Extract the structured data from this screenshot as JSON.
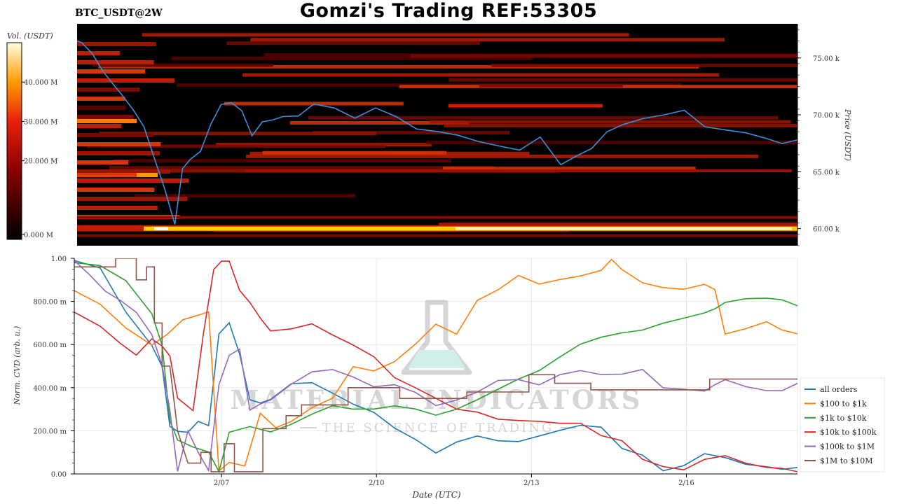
{
  "header": {
    "title": "Gomzi's Trading REF:53305",
    "pair": "BTC_USDT@2W"
  },
  "watermark": {
    "line1": "MATERIAL INDICATORS",
    "line2": "THE SCIENCE OF TRADING"
  },
  "colors": {
    "all_orders": "#1f77b4",
    "s100_1k": "#ff7f0e",
    "s1k_10k": "#2ca02c",
    "s10k_100k": "#d62728",
    "s100k_1m": "#9467bd",
    "s1m_10m": "#8c564b",
    "price_line": "#3a8fd9",
    "heatmap_bg": "#000000"
  },
  "chart_data": [
    {
      "type": "heatmap",
      "name": "orderbook-heatmap",
      "colorbar_label": "Vol. (USDT)",
      "colorbar_ticks": [
        "0.000 M",
        "20.000 M",
        "30.000 M",
        "40.000 M"
      ],
      "colorbar_range": [
        0,
        50
      ],
      "ylabel": "Price (USDT)",
      "y_ticks": [
        "60.00 k",
        "65.00 k",
        "70.00 k",
        "75.00 k"
      ],
      "ylim": [
        58500,
        78000
      ],
      "xlim": [
        0,
        14
      ],
      "price_series": {
        "x": [
          0,
          0.1,
          0.3,
          0.5,
          0.7,
          0.9,
          1.1,
          1.3,
          1.5,
          1.7,
          1.9,
          2.05,
          2.2,
          2.4,
          2.6,
          2.8,
          3.0,
          3.2,
          3.4,
          3.6,
          3.8,
          4.0,
          4.3,
          4.6,
          5.0,
          5.4,
          5.8,
          6.2,
          6.6,
          7.0,
          7.4,
          7.8,
          8.2,
          8.6,
          9.0,
          9.4,
          9.7,
          10.0,
          10.3,
          10.6,
          11.0,
          11.4,
          11.8,
          12.2,
          12.6,
          13.0,
          13.4,
          13.7,
          14.0
        ],
        "y": [
          76500,
          76300,
          75200,
          73800,
          72600,
          71600,
          70500,
          68800,
          66200,
          63500,
          60400,
          65200,
          66000,
          66800,
          69200,
          70800,
          71000,
          70500,
          68200,
          69400,
          69400,
          69800,
          70000,
          70900,
          70700,
          69800,
          70600,
          69900,
          68900,
          68400,
          68200,
          67800,
          67300,
          67000,
          68000,
          65700,
          66300,
          67100,
          68400,
          69100,
          69700,
          69900,
          70500,
          69000,
          68700,
          68300,
          67900,
          67600,
          67800
        ]
      }
    },
    {
      "type": "line",
      "name": "normalized-cvd",
      "xlabel": "Date (UTC)",
      "ylabel": "Norm. CVD (arb. u.)",
      "categories": [
        "2/07",
        "2/10",
        "2/13",
        "2/16"
      ],
      "category_x": [
        2.85,
        5.85,
        8.85,
        11.85
      ],
      "y_ticks": [
        "0.00",
        "200.00 m",
        "400.00 m",
        "600.00 m",
        "800.00 m",
        "1.00"
      ],
      "y_tick_values": [
        0,
        0.2,
        0.4,
        0.6,
        0.8,
        1.0
      ],
      "xlim": [
        0,
        14
      ],
      "ylim": [
        0,
        1
      ],
      "legend_position": "right",
      "series": [
        {
          "name": "all orders",
          "color_key": "all_orders",
          "x": [
            0,
            0.5,
            1.0,
            1.5,
            1.7,
            1.85,
            2.0,
            2.2,
            2.4,
            2.6,
            2.8,
            3.0,
            3.2,
            3.4,
            3.6,
            3.8,
            4.2,
            4.6,
            5.0,
            5.4,
            5.8,
            6.2,
            6.6,
            7.0,
            7.4,
            7.8,
            8.2,
            8.6,
            9.0,
            9.4,
            9.8,
            10.2,
            10.6,
            11.0,
            11.4,
            11.8,
            12.2,
            12.6,
            13.0,
            13.4,
            13.7,
            14.0
          ],
          "y": [
            0.99,
            0.96,
            0.75,
            0.6,
            0.5,
            0.22,
            0.2,
            0.2,
            0.25,
            0.22,
            0.65,
            0.7,
            0.55,
            0.35,
            0.33,
            0.35,
            0.42,
            0.43,
            0.38,
            0.32,
            0.28,
            0.22,
            0.16,
            0.1,
            0.15,
            0.18,
            0.15,
            0.15,
            0.18,
            0.2,
            0.22,
            0.21,
            0.12,
            0.08,
            0.01,
            0.04,
            0.1,
            0.08,
            0.05,
            0.03,
            0.02,
            0.03
          ]
        },
        {
          "name": "$100 to $1k",
          "color_key": "s100_1k",
          "x": [
            0,
            0.5,
            1.0,
            1.5,
            1.8,
            2.1,
            2.4,
            2.6,
            2.8,
            3.0,
            3.3,
            3.6,
            3.9,
            4.2,
            4.6,
            5.0,
            5.4,
            5.8,
            6.2,
            6.6,
            7.0,
            7.4,
            7.8,
            8.2,
            8.6,
            9.0,
            9.4,
            9.8,
            10.2,
            10.4,
            10.6,
            11.0,
            11.4,
            11.8,
            12.2,
            12.4,
            12.6,
            13.0,
            13.4,
            13.7,
            14.0
          ],
          "y": [
            0.85,
            0.78,
            0.68,
            0.6,
            0.65,
            0.72,
            0.73,
            0.75,
            0.01,
            0.05,
            0.04,
            0.28,
            0.22,
            0.24,
            0.3,
            0.35,
            0.5,
            0.48,
            0.52,
            0.6,
            0.7,
            0.65,
            0.8,
            0.85,
            0.92,
            0.88,
            0.9,
            0.92,
            0.95,
            1.0,
            0.95,
            0.88,
            0.86,
            0.85,
            0.88,
            0.85,
            0.65,
            0.68,
            0.7,
            0.67,
            0.65
          ]
        },
        {
          "name": "$1k to $10k",
          "color_key": "s1k_10k",
          "x": [
            0,
            0.5,
            1.0,
            1.5,
            1.7,
            1.85,
            2.0,
            2.3,
            2.6,
            2.8,
            3.0,
            3.4,
            3.8,
            4.2,
            4.6,
            5.0,
            5.4,
            5.8,
            6.2,
            6.6,
            7.0,
            7.4,
            7.8,
            8.2,
            8.6,
            9.0,
            9.4,
            9.8,
            10.2,
            10.6,
            11.0,
            11.4,
            11.8,
            12.2,
            12.4,
            12.6,
            13.0,
            13.4,
            13.7,
            14.0
          ],
          "y": [
            0.98,
            0.97,
            0.9,
            0.75,
            0.6,
            0.25,
            0.15,
            0.12,
            0.1,
            0.01,
            0.2,
            0.22,
            0.2,
            0.23,
            0.28,
            0.32,
            0.3,
            0.3,
            0.32,
            0.3,
            0.27,
            0.3,
            0.35,
            0.4,
            0.44,
            0.48,
            0.55,
            0.6,
            0.64,
            0.66,
            0.67,
            0.7,
            0.72,
            0.74,
            0.76,
            0.8,
            0.82,
            0.81,
            0.8,
            0.78
          ]
        },
        {
          "name": "$10k to $100k",
          "color_key": "s10k_100k",
          "x": [
            0,
            0.5,
            0.9,
            1.2,
            1.5,
            1.7,
            1.85,
            2.0,
            2.3,
            2.5,
            2.7,
            2.85,
            3.0,
            3.2,
            3.4,
            3.6,
            3.8,
            4.2,
            4.6,
            5.0,
            5.4,
            5.8,
            6.2,
            6.6,
            7.0,
            7.4,
            7.8,
            8.2,
            8.6,
            9.0,
            9.4,
            9.8,
            10.2,
            10.6,
            11.0,
            11.4,
            11.8,
            12.2,
            12.6,
            13.0,
            13.4,
            13.7,
            14.0
          ],
          "y": [
            0.75,
            0.68,
            0.6,
            0.55,
            0.62,
            0.6,
            0.55,
            0.35,
            0.3,
            0.65,
            0.95,
            0.99,
            0.98,
            0.85,
            0.8,
            0.72,
            0.66,
            0.68,
            0.7,
            0.65,
            0.6,
            0.55,
            0.45,
            0.4,
            0.35,
            0.3,
            0.28,
            0.26,
            0.25,
            0.25,
            0.24,
            0.24,
            0.18,
            0.16,
            0.07,
            0.04,
            0.02,
            0.07,
            0.08,
            0.05,
            0.03,
            0.02,
            0.01
          ]
        },
        {
          "name": "$100k to $1M",
          "color_key": "s100k_1m",
          "x": [
            0,
            0.3,
            0.6,
            0.9,
            1.2,
            1.5,
            1.7,
            1.85,
            2.0,
            2.2,
            2.4,
            2.6,
            2.8,
            3.0,
            3.2,
            3.4,
            3.6,
            3.8,
            4.2,
            4.6,
            5.0,
            5.4,
            5.8,
            6.2,
            6.6,
            7.0,
            7.4,
            7.8,
            8.2,
            8.6,
            9.0,
            9.4,
            9.8,
            10.2,
            10.6,
            11.0,
            11.4,
            11.8,
            12.2,
            12.4,
            12.6,
            13.0,
            13.4,
            13.7,
            14.0
          ],
          "y": [
            0.99,
            0.92,
            0.85,
            0.8,
            0.75,
            0.65,
            0.5,
            0.3,
            0.01,
            0.2,
            0.1,
            0.01,
            0.42,
            0.55,
            0.58,
            0.3,
            0.32,
            0.34,
            0.42,
            0.47,
            0.49,
            0.45,
            0.4,
            0.42,
            0.38,
            0.32,
            0.35,
            0.38,
            0.43,
            0.44,
            0.42,
            0.46,
            0.48,
            0.46,
            0.47,
            0.48,
            0.4,
            0.39,
            0.38,
            0.42,
            0.43,
            0.4,
            0.38,
            0.39,
            0.42
          ]
        },
        {
          "name": "$1M to $10M",
          "color_key": "s1m_10m",
          "x": [
            0,
            0.5,
            0.8,
            0.8,
            1.2,
            1.2,
            1.4,
            1.4,
            1.55,
            1.55,
            1.7,
            1.7,
            1.85,
            2.0,
            2.2,
            2.45,
            2.45,
            2.65,
            2.65,
            2.9,
            2.9,
            3.1,
            3.1,
            3.65,
            3.65,
            4.1,
            4.1,
            4.4,
            4.4,
            5.3,
            5.3,
            6.3,
            6.3,
            7.6,
            7.6,
            8.8,
            8.8,
            9.3,
            9.3,
            10.0,
            10.0,
            12.3,
            12.3,
            14.0
          ],
          "y": [
            0.96,
            0.96,
            0.96,
            1.0,
            1.0,
            0.9,
            0.9,
            0.96,
            0.96,
            0.7,
            0.7,
            0.5,
            0.5,
            0.2,
            0.05,
            0.05,
            0.1,
            0.1,
            0.01,
            0.01,
            0.14,
            0.14,
            0.01,
            0.01,
            0.21,
            0.21,
            0.27,
            0.27,
            0.32,
            0.32,
            0.4,
            0.4,
            0.35,
            0.35,
            0.38,
            0.38,
            0.46,
            0.46,
            0.42,
            0.42,
            0.39,
            0.39,
            0.44,
            0.44
          ]
        }
      ]
    }
  ]
}
